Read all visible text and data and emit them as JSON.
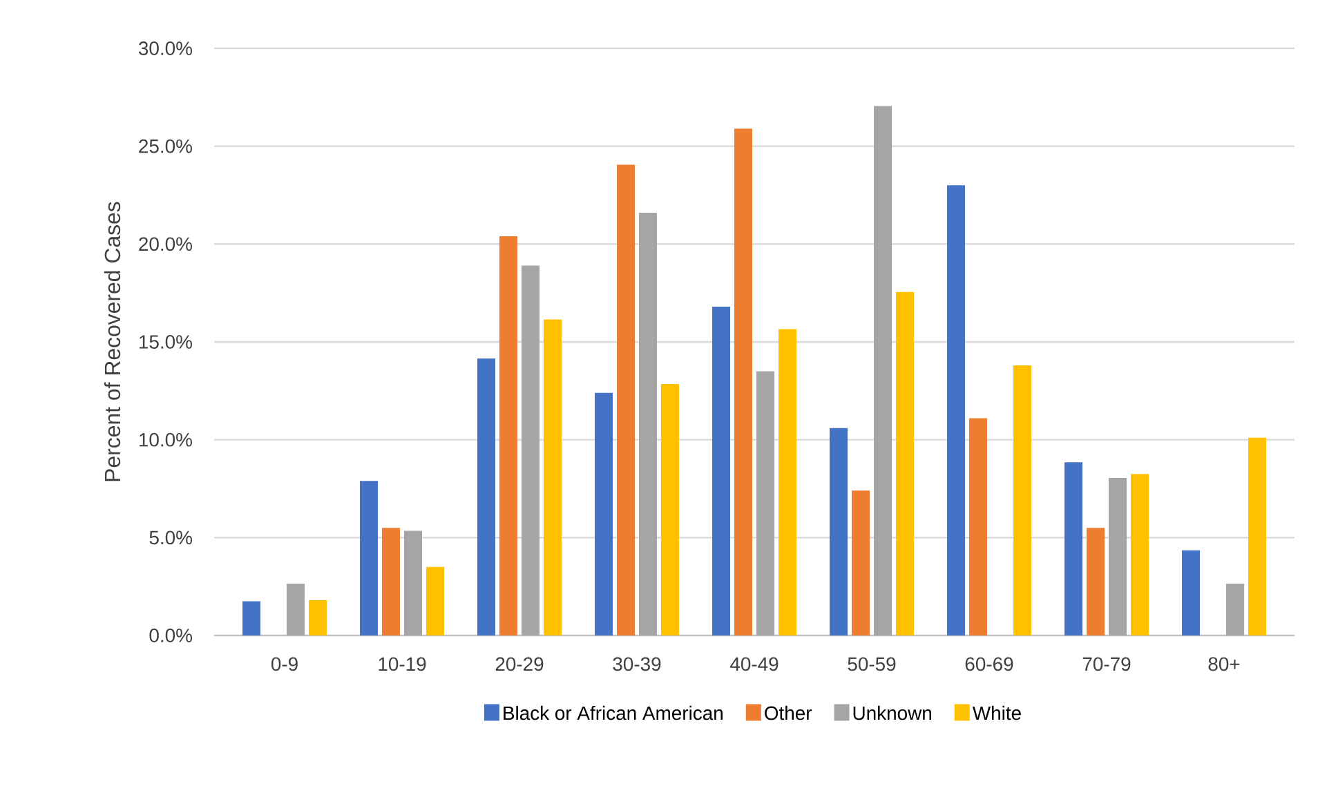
{
  "chart_data": {
    "type": "bar",
    "ylabel": "Percent of Recovered Cases",
    "categories": [
      "0-9",
      "10-19",
      "20-29",
      "30-39",
      "40-49",
      "50-59",
      "60-69",
      "70-79",
      "80+"
    ],
    "series": [
      {
        "name": "Black or African American",
        "color": "#4472c4",
        "values": [
          1.75,
          7.9,
          14.15,
          12.4,
          16.8,
          10.6,
          23.0,
          8.85,
          4.35
        ]
      },
      {
        "name": "Other",
        "color": "#ed7d31",
        "values": [
          0,
          5.5,
          20.4,
          24.05,
          25.9,
          7.4,
          11.1,
          5.5,
          0
        ]
      },
      {
        "name": "Unknown",
        "color": "#a5a5a5",
        "values": [
          2.65,
          5.35,
          18.9,
          21.6,
          13.5,
          27.05,
          0,
          8.05,
          2.65
        ]
      },
      {
        "name": "White",
        "color": "#ffc000",
        "values": [
          1.8,
          3.5,
          16.15,
          12.85,
          15.65,
          17.55,
          13.8,
          8.25,
          10.1
        ]
      }
    ],
    "ylim": [
      0,
      30
    ],
    "yticks": [
      {
        "value": 0,
        "label": "0.0%"
      },
      {
        "value": 5,
        "label": "5.0%"
      },
      {
        "value": 10,
        "label": "10.0%"
      },
      {
        "value": 15,
        "label": "15.0%"
      },
      {
        "value": 20,
        "label": "20.0%"
      },
      {
        "value": 25,
        "label": "25.0%"
      },
      {
        "value": 30,
        "label": "30.0%"
      }
    ],
    "grid": "y",
    "legend": "bottom"
  }
}
